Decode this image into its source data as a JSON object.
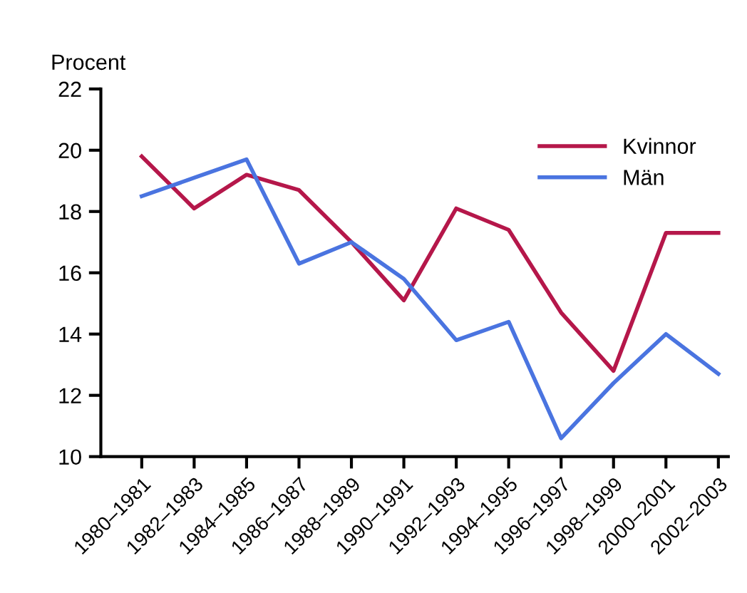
{
  "chart_data": {
    "type": "line",
    "ylabel": "Procent",
    "categories": [
      "1980–1981",
      "1982–1983",
      "1984–1985",
      "1986–1987",
      "1988–1989",
      "1990–1991",
      "1992–1993",
      "1994–1995",
      "1996–1997",
      "1998–1999",
      "2000–2001",
      "2002–2003"
    ],
    "series": [
      {
        "name": "Kvinnor",
        "color": "#b5174a",
        "values": [
          19.8,
          18.1,
          19.2,
          18.7,
          17.0,
          15.1,
          18.1,
          17.4,
          14.7,
          12.8,
          17.3,
          17.3
        ]
      },
      {
        "name": "Män",
        "color": "#4a74e0",
        "values": [
          18.5,
          19.1,
          19.7,
          16.3,
          17.0,
          15.8,
          13.8,
          14.4,
          10.6,
          12.4,
          14.0,
          12.7
        ]
      }
    ],
    "ylim": [
      10,
      22
    ],
    "yticks": [
      10,
      12,
      14,
      16,
      18,
      20,
      22
    ],
    "grid": false,
    "legend": "top right",
    "marker": "none",
    "line_style": "solid"
  }
}
